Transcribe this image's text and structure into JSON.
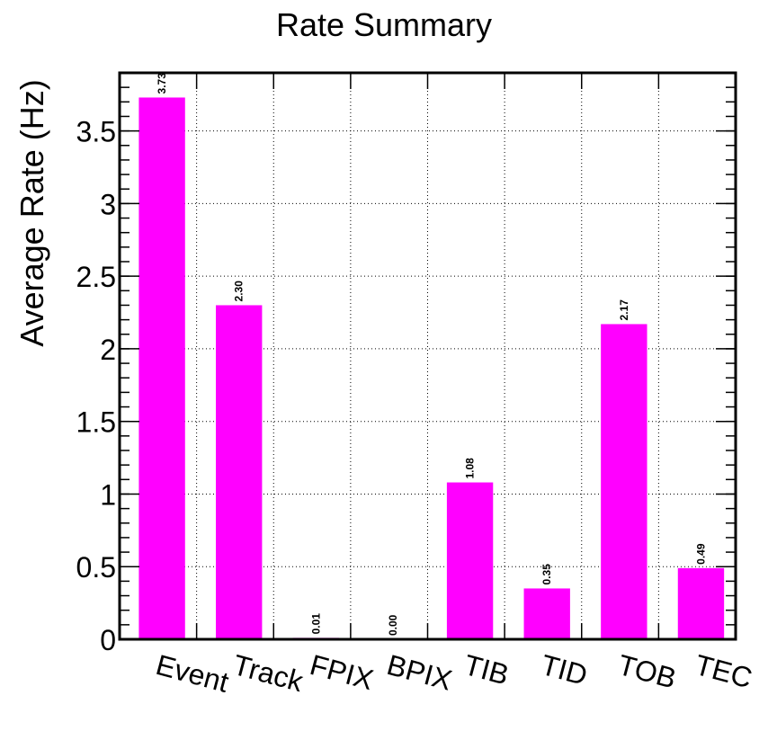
{
  "chart_data": {
    "type": "bar",
    "title": "Rate Summary",
    "xlabel": "",
    "ylabel": "Average Rate (Hz)",
    "categories": [
      "Event",
      "Track",
      "FPIX",
      "BPIX",
      "TIB",
      "TID",
      "TOB",
      "TEC"
    ],
    "values": [
      3.73,
      2.3,
      0.01,
      0.0,
      1.08,
      0.35,
      2.17,
      0.49
    ],
    "value_labels": [
      "3.73",
      "2.30",
      "0.01",
      "0.00",
      "1.08",
      "0.35",
      "2.17",
      "0.49"
    ],
    "ylim": [
      0,
      3.9
    ],
    "yticks": [
      0,
      0.5,
      1,
      1.5,
      2,
      2.5,
      3,
      3.5
    ],
    "ytick_labels": [
      "0",
      "0.5",
      "1",
      "1.5",
      "2",
      "2.5",
      "3",
      "3.5"
    ],
    "grid": true,
    "bar_color": "#ff00ff"
  }
}
